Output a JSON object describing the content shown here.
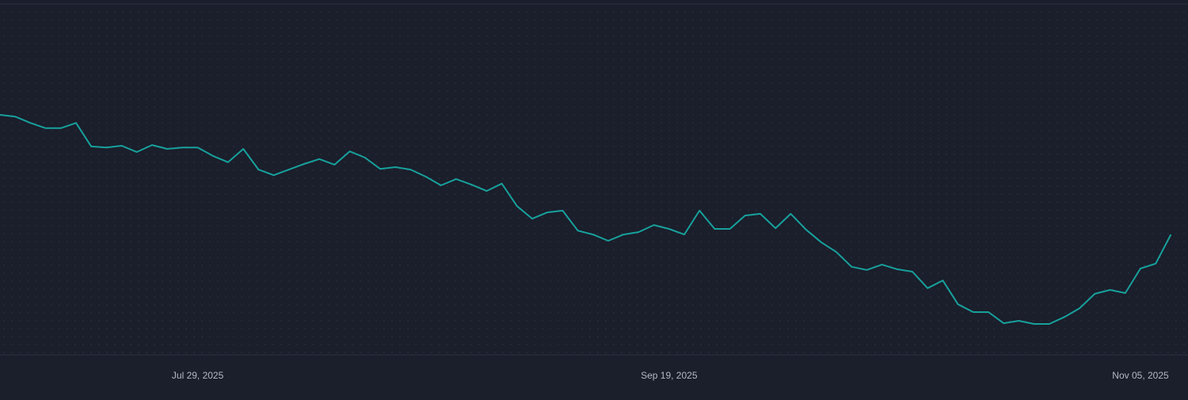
{
  "chart_data": {
    "type": "line",
    "categories": [
      null,
      null,
      null,
      null,
      null,
      null,
      null,
      null,
      null,
      null,
      null,
      null,
      null,
      "Jul 29, 2025",
      null,
      null,
      null,
      null,
      null,
      null,
      null,
      null,
      null,
      null,
      null,
      null,
      null,
      null,
      null,
      null,
      null,
      null,
      null,
      null,
      null,
      null,
      null,
      null,
      null,
      null,
      null,
      null,
      null,
      null,
      "Sep 19, 2025",
      null,
      null,
      null,
      null,
      null,
      null,
      null,
      null,
      null,
      null,
      null,
      null,
      null,
      null,
      null,
      null,
      null,
      null,
      null,
      null,
      null,
      null,
      null,
      null,
      null,
      null,
      null,
      null,
      null,
      null,
      "Nov 05, 2025",
      null,
      null
    ],
    "series": [
      {
        "color": "#17a19c",
        "values": [
          68.4,
          67.9,
          66.1,
          64.6,
          64.6,
          66.1,
          59.4,
          59.1,
          59.6,
          57.8,
          59.8,
          58.7,
          59.1,
          59.1,
          56.7,
          54.9,
          58.7,
          52.8,
          51.2,
          52.8,
          54.4,
          55.8,
          54.2,
          58.0,
          56.2,
          53.0,
          53.5,
          52.8,
          50.8,
          48.3,
          50.1,
          48.5,
          46.7,
          48.8,
          42.4,
          38.8,
          40.6,
          41.1,
          35.4,
          34.3,
          32.5,
          34.3,
          35.0,
          37.0,
          35.9,
          34.3,
          41.1,
          35.9,
          35.9,
          39.7,
          40.2,
          36.1,
          40.2,
          35.7,
          32.1,
          29.3,
          25.1,
          24.2,
          25.7,
          24.4,
          23.7,
          19.0,
          21.2,
          14.4,
          12.2,
          12.2,
          9.0,
          9.7,
          8.8,
          8.8,
          10.8,
          13.3,
          17.4,
          18.5,
          17.6,
          24.6,
          26.0,
          34.3
        ]
      }
    ],
    "ylim": [
      0,
      100
    ],
    "grid": true
  }
}
